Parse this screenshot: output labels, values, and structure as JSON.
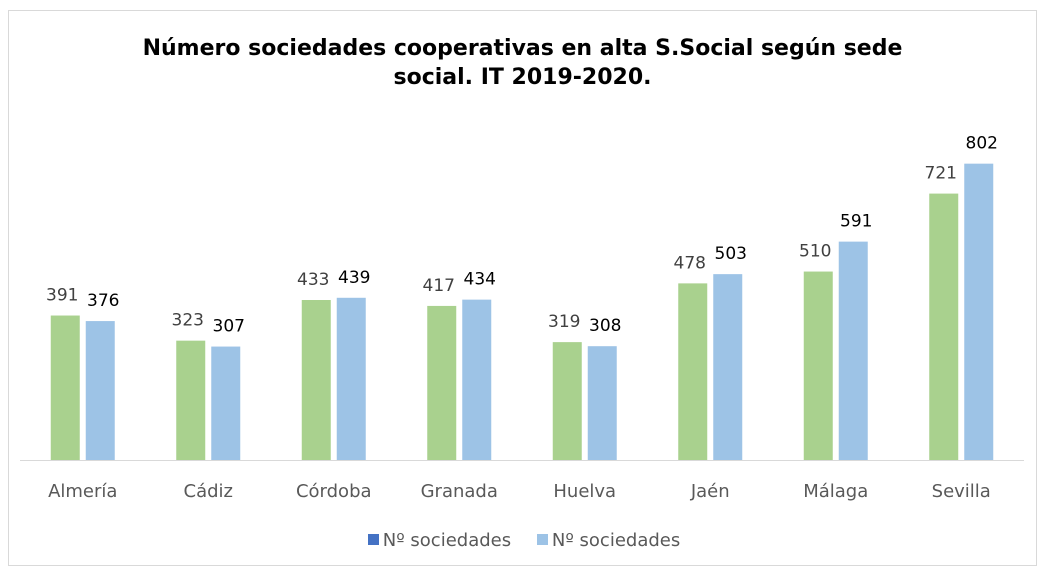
{
  "chart_data": {
    "type": "bar",
    "title_lines": [
      "Número sociedades cooperativas en alta S.Social según sede",
      "social. IT 2019-2020."
    ],
    "categories": [
      "Almería",
      "Cádiz",
      "Córdoba",
      "Granada",
      "Huelva",
      "Jaén",
      "Málaga",
      "Sevilla"
    ],
    "series": [
      {
        "name": "Nº sociedades",
        "color": "#a9d18e",
        "legend_color": "#4472c4",
        "values": [
          391,
          323,
          433,
          417,
          319,
          478,
          510,
          721
        ]
      },
      {
        "name": "Nº sociedades",
        "color": "#9dc3e6",
        "legend_color": "#9dc3e6",
        "values": [
          376,
          307,
          439,
          434,
          308,
          503,
          591,
          802
        ]
      }
    ],
    "ylim": [
      0,
      900
    ],
    "grid": false,
    "legend_position": "bottom"
  }
}
